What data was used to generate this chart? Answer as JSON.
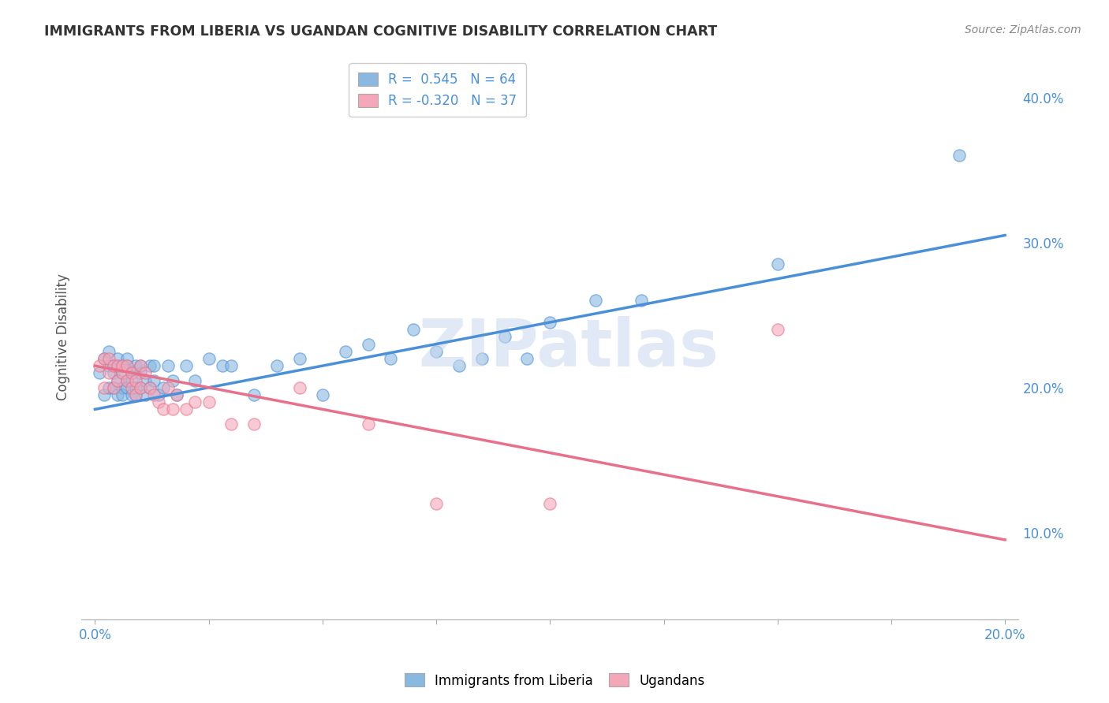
{
  "title": "IMMIGRANTS FROM LIBERIA VS UGANDAN COGNITIVE DISABILITY CORRELATION CHART",
  "source": "Source: ZipAtlas.com",
  "xlim": [
    -0.003,
    0.203
  ],
  "ylim": [
    0.04,
    0.43
  ],
  "blue_color": "#89b8e0",
  "blue_line_color": "#4a90d9",
  "pink_color": "#f4a7b9",
  "pink_line_color": "#e8708a",
  "watermark": "ZIPatlas",
  "grid_color": "#cccccc",
  "bg_color": "#ffffff",
  "blue_scatter_x": [
    0.001,
    0.002,
    0.002,
    0.003,
    0.003,
    0.003,
    0.004,
    0.004,
    0.004,
    0.005,
    0.005,
    0.005,
    0.005,
    0.006,
    0.006,
    0.006,
    0.006,
    0.007,
    0.007,
    0.007,
    0.007,
    0.008,
    0.008,
    0.008,
    0.009,
    0.009,
    0.009,
    0.01,
    0.01,
    0.01,
    0.011,
    0.011,
    0.012,
    0.012,
    0.013,
    0.013,
    0.014,
    0.015,
    0.016,
    0.017,
    0.018,
    0.02,
    0.022,
    0.025,
    0.028,
    0.03,
    0.035,
    0.04,
    0.045,
    0.05,
    0.055,
    0.06,
    0.065,
    0.07,
    0.075,
    0.08,
    0.085,
    0.09,
    0.095,
    0.1,
    0.11,
    0.12,
    0.15,
    0.19
  ],
  "blue_scatter_y": [
    0.21,
    0.195,
    0.22,
    0.2,
    0.215,
    0.225,
    0.2,
    0.215,
    0.21,
    0.205,
    0.195,
    0.215,
    0.22,
    0.2,
    0.21,
    0.195,
    0.215,
    0.205,
    0.2,
    0.215,
    0.22,
    0.195,
    0.21,
    0.205,
    0.2,
    0.215,
    0.195,
    0.21,
    0.2,
    0.215,
    0.205,
    0.195,
    0.215,
    0.2,
    0.205,
    0.215,
    0.195,
    0.2,
    0.215,
    0.205,
    0.195,
    0.215,
    0.205,
    0.22,
    0.215,
    0.215,
    0.195,
    0.215,
    0.22,
    0.195,
    0.225,
    0.23,
    0.22,
    0.24,
    0.225,
    0.215,
    0.22,
    0.235,
    0.22,
    0.245,
    0.26,
    0.26,
    0.285,
    0.36
  ],
  "pink_scatter_x": [
    0.001,
    0.002,
    0.002,
    0.003,
    0.003,
    0.004,
    0.004,
    0.005,
    0.005,
    0.006,
    0.006,
    0.007,
    0.007,
    0.008,
    0.008,
    0.009,
    0.009,
    0.01,
    0.01,
    0.011,
    0.012,
    0.013,
    0.014,
    0.015,
    0.016,
    0.017,
    0.018,
    0.02,
    0.022,
    0.025,
    0.03,
    0.035,
    0.045,
    0.06,
    0.075,
    0.1,
    0.15
  ],
  "pink_scatter_y": [
    0.215,
    0.22,
    0.2,
    0.21,
    0.22,
    0.215,
    0.2,
    0.205,
    0.215,
    0.21,
    0.215,
    0.205,
    0.215,
    0.2,
    0.21,
    0.205,
    0.195,
    0.215,
    0.2,
    0.21,
    0.2,
    0.195,
    0.19,
    0.185,
    0.2,
    0.185,
    0.195,
    0.185,
    0.19,
    0.19,
    0.175,
    0.175,
    0.2,
    0.175,
    0.12,
    0.12,
    0.24
  ],
  "blue_line_x": [
    0.0,
    0.2
  ],
  "blue_line_y": [
    0.185,
    0.305
  ],
  "pink_line_x": [
    0.0,
    0.2
  ],
  "pink_line_y": [
    0.215,
    0.095
  ],
  "xticks": [
    0.0,
    0.025,
    0.05,
    0.075,
    0.1,
    0.125,
    0.15,
    0.175,
    0.2
  ],
  "xtick_labels_show": {
    "0.0": "0.0%",
    "0.20": "20.0%"
  },
  "yticks_right": [
    0.1,
    0.2,
    0.3,
    0.4
  ],
  "ytick_right_labels": [
    "10.0%",
    "20.0%",
    "30.0%",
    "40.0%"
  ]
}
